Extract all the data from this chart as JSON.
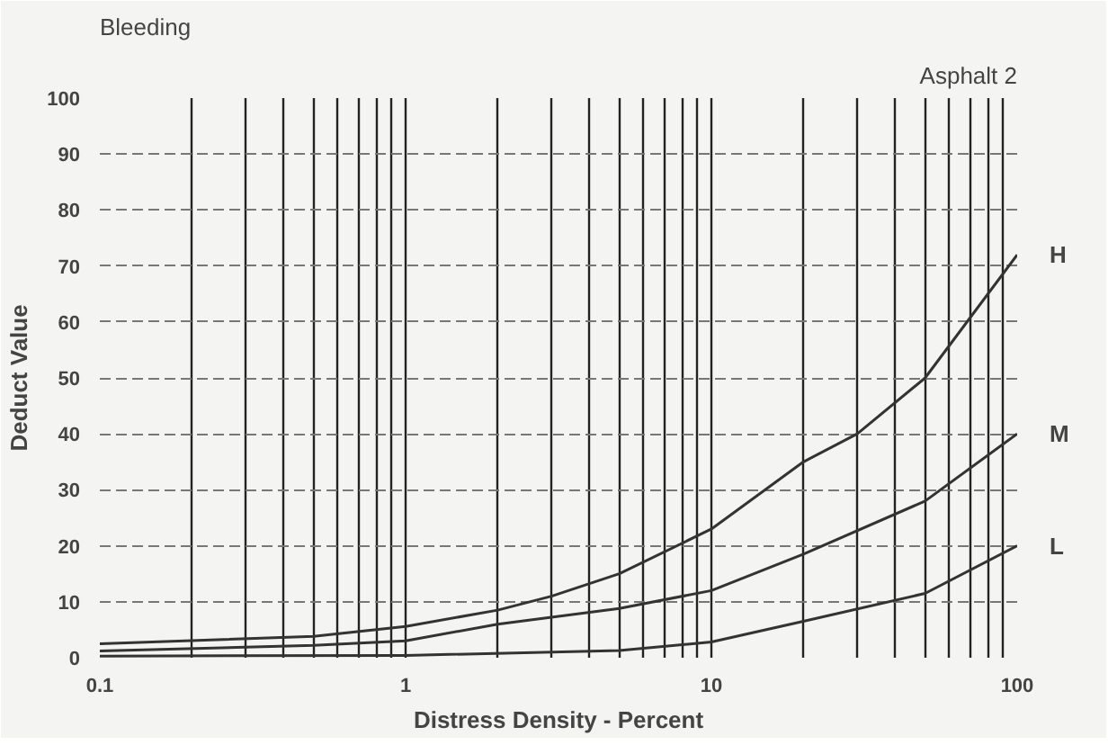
{
  "chart_data": {
    "type": "line",
    "title": "Bleeding",
    "subtitle": "Asphalt 2",
    "xlabel": "Distress Density - Percent",
    "ylabel": "Deduct Value",
    "log": "x",
    "grid": true,
    "marker": "none",
    "line_style": "solid",
    "xlim": [
      0.1,
      100
    ],
    "ylim": [
      0,
      100
    ],
    "xticks": [
      0.1,
      {
        "value": 0.2,
        "label": null
      },
      {
        "value": 0.3,
        "label": null
      },
      {
        "value": 0.4,
        "label": null
      },
      {
        "value": 0.5,
        "label": null
      },
      {
        "value": 0.6,
        "label": null
      },
      {
        "value": 0.7,
        "label": null
      },
      {
        "value": 0.8,
        "label": null
      },
      {
        "value": 0.9,
        "label": null
      },
      1,
      {
        "value": 2,
        "label": null
      },
      {
        "value": 3,
        "label": null
      },
      {
        "value": 4,
        "label": null
      },
      {
        "value": 5,
        "label": null
      },
      {
        "value": 6,
        "label": null
      },
      {
        "value": 7,
        "label": null
      },
      {
        "value": 8,
        "label": null
      },
      {
        "value": 9,
        "label": null
      },
      10,
      {
        "value": 20,
        "label": null
      },
      {
        "value": 30,
        "label": null
      },
      {
        "value": 40,
        "label": null
      },
      {
        "value": 50,
        "label": null
      },
      {
        "value": 60,
        "label": null
      },
      {
        "value": 70,
        "label": null
      },
      {
        "value": 80,
        "label": null
      },
      {
        "value": 90,
        "label": null
      },
      100
    ],
    "yticks": [
      0,
      10,
      20,
      30,
      40,
      50,
      60,
      70,
      80,
      90,
      100
    ],
    "series": [
      {
        "name": "H",
        "color": "#333333",
        "x": [
          0.1,
          0.5,
          1,
          2,
          3,
          5,
          10,
          20,
          30,
          50,
          100
        ],
        "values": [
          2.5,
          3.8,
          5.6,
          8.5,
          11,
          15,
          23,
          35,
          40,
          50,
          72
        ]
      },
      {
        "name": "M",
        "color": "#333333",
        "x": [
          0.1,
          0.5,
          1,
          2,
          5,
          10,
          20,
          50,
          100
        ],
        "values": [
          1.2,
          2.2,
          3,
          6,
          8.8,
          12,
          18.5,
          28,
          40
        ]
      },
      {
        "name": "L",
        "color": "#333333",
        "x": [
          0.1,
          1,
          5,
          10,
          20,
          50,
          100
        ],
        "values": [
          0.3,
          0.4,
          1.3,
          2.8,
          6.5,
          11.5,
          20
        ]
      }
    ]
  }
}
